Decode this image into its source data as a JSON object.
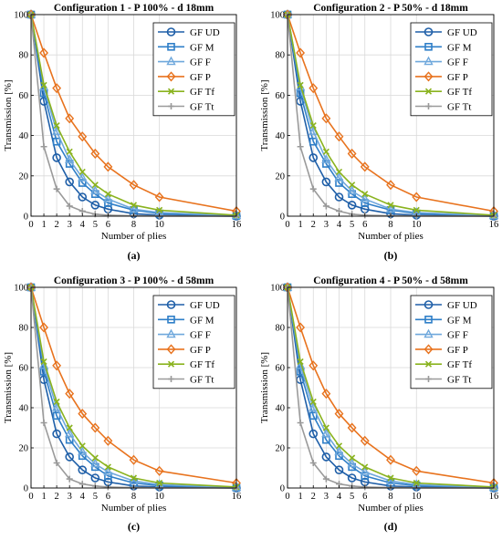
{
  "colors": {
    "GF UD": "#1f5fa8",
    "GF M": "#2f7fc8",
    "GF F": "#6fa8dc",
    "GF P": "#e8731e",
    "GF Tf": "#8ab31f",
    "GF Tt": "#9a9a9a"
  },
  "markers": {
    "GF UD": "circle-icon",
    "GF M": "square-icon",
    "GF F": "triangle-icon",
    "GF P": "diamond-icon",
    "GF Tf": "cross-icon",
    "GF Tt": "plus-icon"
  },
  "chart_data": [
    {
      "type": "line",
      "panel_label": "(a)",
      "title": "Configuration 1 - P 100% - d 18mm",
      "xlabel": "Number of plies",
      "ylabel": "Transmission [%]",
      "xticks": [
        0,
        1,
        2,
        3,
        4,
        5,
        6,
        8,
        10,
        16
      ],
      "yticks": [
        0,
        20,
        40,
        60,
        80,
        100
      ],
      "xlim": [
        0,
        16
      ],
      "ylim": [
        0,
        100
      ],
      "grid": true,
      "legend_position": "top-right",
      "x": [
        0,
        1,
        2,
        3,
        4,
        5,
        6,
        8,
        10,
        16
      ],
      "series": [
        {
          "name": "GF UD",
          "values": [
            100,
            57,
            29,
            17,
            9.5,
            5.5,
            3.5,
            1.2,
            0.5,
            0
          ]
        },
        {
          "name": "GF M",
          "values": [
            100,
            61,
            37,
            26,
            16.5,
            11,
            6.5,
            3,
            1.3,
            0.2
          ]
        },
        {
          "name": "GF F",
          "values": [
            100,
            64,
            42,
            28,
            19,
            12.5,
            8.5,
            3.5,
            1.8,
            0.3
          ]
        },
        {
          "name": "GF P",
          "values": [
            100,
            81,
            63.5,
            48.5,
            39.5,
            31,
            24.5,
            15.5,
            9.5,
            2.5
          ]
        },
        {
          "name": "GF Tf",
          "values": [
            100,
            65,
            45,
            32,
            22,
            15.5,
            11,
            5.5,
            3,
            0.5
          ]
        },
        {
          "name": "GF Tt",
          "values": [
            100,
            34.5,
            13.5,
            5,
            2.5,
            1,
            0.5,
            0.2,
            0.1,
            0
          ]
        }
      ]
    },
    {
      "type": "line",
      "panel_label": "(b)",
      "title": "Configuration 2 - P 50% - d 18mm",
      "xlabel": "Number of plies",
      "ylabel": "Transmission [%]",
      "xticks": [
        0,
        1,
        2,
        3,
        4,
        5,
        6,
        8,
        10,
        16
      ],
      "yticks": [
        0,
        20,
        40,
        60,
        80,
        100
      ],
      "xlim": [
        0,
        16
      ],
      "ylim": [
        0,
        100
      ],
      "grid": true,
      "legend_position": "top-right",
      "x": [
        0,
        1,
        2,
        3,
        4,
        5,
        6,
        8,
        10,
        16
      ],
      "series": [
        {
          "name": "GF UD",
          "values": [
            100,
            57,
            29,
            17,
            9.5,
            5.5,
            3.5,
            1.2,
            0.5,
            0
          ]
        },
        {
          "name": "GF M",
          "values": [
            100,
            61,
            37,
            26,
            16.5,
            11,
            6.5,
            3,
            1.3,
            0.2
          ]
        },
        {
          "name": "GF F",
          "values": [
            100,
            64,
            42,
            28,
            19,
            12.5,
            8.5,
            3.5,
            1.8,
            0.3
          ]
        },
        {
          "name": "GF P",
          "values": [
            100,
            81,
            63.5,
            48.5,
            39.5,
            31,
            24.5,
            15.5,
            9.5,
            2.5
          ]
        },
        {
          "name": "GF Tf",
          "values": [
            100,
            65,
            45,
            32,
            22,
            15.5,
            11,
            5.5,
            3,
            0.5
          ]
        },
        {
          "name": "GF Tt",
          "values": [
            100,
            34.5,
            13.5,
            5,
            2.5,
            1,
            0.5,
            0.2,
            0.1,
            0
          ]
        }
      ]
    },
    {
      "type": "line",
      "panel_label": "(c)",
      "title": "Configuration 3 - P 100% - d 58mm",
      "xlabel": "Number of plies",
      "ylabel": "Transmission [%]",
      "xticks": [
        0,
        1,
        2,
        3,
        4,
        5,
        6,
        8,
        10,
        16
      ],
      "yticks": [
        0,
        20,
        40,
        60,
        80,
        100
      ],
      "xlim": [
        0,
        16
      ],
      "ylim": [
        0,
        100
      ],
      "grid": true,
      "legend_position": "top-right",
      "x": [
        0,
        1,
        2,
        3,
        4,
        5,
        6,
        8,
        10,
        16
      ],
      "series": [
        {
          "name": "GF UD",
          "values": [
            100,
            54,
            27,
            15.5,
            9,
            5,
            3,
            1,
            0.5,
            0
          ]
        },
        {
          "name": "GF M",
          "values": [
            100,
            58,
            36,
            24,
            16,
            10.5,
            6,
            2.5,
            1.2,
            0.2
          ]
        },
        {
          "name": "GF F",
          "values": [
            100,
            61,
            40,
            27,
            18,
            12,
            8,
            3.5,
            1.7,
            0.3
          ]
        },
        {
          "name": "GF P",
          "values": [
            100,
            80,
            61,
            47,
            37,
            30,
            23.5,
            14,
            8.5,
            2.5
          ]
        },
        {
          "name": "GF Tf",
          "values": [
            100,
            63,
            43,
            30,
            21,
            15,
            10.5,
            5,
            2.5,
            0.5
          ]
        },
        {
          "name": "GF Tt",
          "values": [
            100,
            32.5,
            12.5,
            4.5,
            2,
            1,
            0.5,
            0.2,
            0.1,
            0
          ]
        }
      ]
    },
    {
      "type": "line",
      "panel_label": "(d)",
      "title": "Configuration 4 - P 50% - d 58mm",
      "xlabel": "Number of plies",
      "ylabel": "Transmission [%]",
      "xticks": [
        0,
        1,
        2,
        3,
        4,
        5,
        6,
        8,
        10,
        16
      ],
      "yticks": [
        0,
        20,
        40,
        60,
        80,
        100
      ],
      "xlim": [
        0,
        16
      ],
      "ylim": [
        0,
        100
      ],
      "grid": true,
      "legend_position": "top-right",
      "x": [
        0,
        1,
        2,
        3,
        4,
        5,
        6,
        8,
        10,
        16
      ],
      "series": [
        {
          "name": "GF UD",
          "values": [
            100,
            54,
            27,
            15.5,
            9,
            5,
            3,
            1,
            0.5,
            0
          ]
        },
        {
          "name": "GF M",
          "values": [
            100,
            58,
            36,
            24,
            16,
            10.5,
            6,
            2.5,
            1.2,
            0.2
          ]
        },
        {
          "name": "GF F",
          "values": [
            100,
            61,
            40,
            27,
            18,
            12,
            8,
            3.5,
            1.7,
            0.3
          ]
        },
        {
          "name": "GF P",
          "values": [
            100,
            80,
            61,
            47,
            37,
            30,
            23.5,
            14,
            8.5,
            2.5
          ]
        },
        {
          "name": "GF Tf",
          "values": [
            100,
            63,
            43,
            30,
            21,
            15,
            10.5,
            5,
            2.5,
            0.5
          ]
        },
        {
          "name": "GF Tt",
          "values": [
            100,
            32.5,
            12.5,
            4.5,
            2,
            1,
            0.5,
            0.2,
            0.1,
            0
          ]
        }
      ]
    }
  ]
}
